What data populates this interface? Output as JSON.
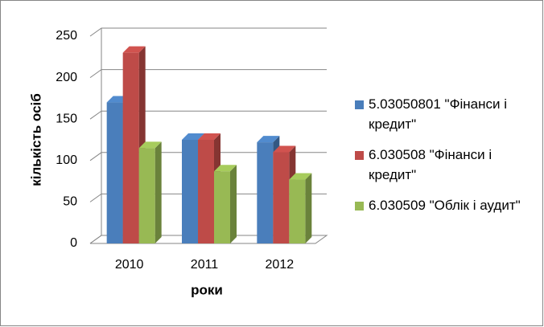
{
  "chart_data": {
    "type": "bar3d",
    "categories": [
      "2010",
      "2011",
      "2012"
    ],
    "series": [
      {
        "name": "5.03050801 \"Фінанси і кредит\"",
        "color": "#4a7ebb",
        "values": [
          170,
          125,
          122
        ]
      },
      {
        "name": "6.030508 \"Фінанси і кредит\"",
        "color": "#be4b48",
        "values": [
          230,
          125,
          110
        ]
      },
      {
        "name": "6.030509 \"Облік і аудит\"",
        "color": "#98b954",
        "values": [
          115,
          87,
          77
        ]
      }
    ],
    "xlabel": "роки",
    "ylabel": "кількість осіб",
    "ylim": [
      0,
      250
    ],
    "yticks": [
      0,
      50,
      100,
      150,
      200,
      250
    ],
    "grid": true,
    "legend": "right"
  }
}
